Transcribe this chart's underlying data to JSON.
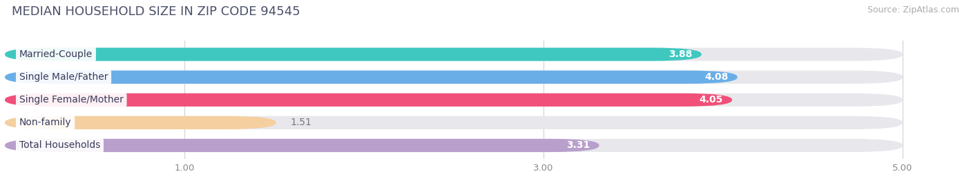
{
  "title": "MEDIAN HOUSEHOLD SIZE IN ZIP CODE 94545",
  "source": "Source: ZipAtlas.com",
  "categories": [
    "Married-Couple",
    "Single Male/Father",
    "Single Female/Mother",
    "Non-family",
    "Total Households"
  ],
  "values": [
    3.88,
    4.08,
    4.05,
    1.51,
    3.31
  ],
  "bar_colors": [
    "#3ec8c0",
    "#6aaee8",
    "#f0507a",
    "#f5cfa0",
    "#b89fcc"
  ],
  "value_colors": [
    "white",
    "white",
    "white",
    "#888888",
    "#888888"
  ],
  "xlim": [
    0,
    5.3
  ],
  "xmin": 0,
  "xticks": [
    1.0,
    3.0,
    5.0
  ],
  "title_fontsize": 13,
  "source_fontsize": 9,
  "label_fontsize": 10,
  "value_fontsize": 10,
  "background_color": "#ffffff",
  "bar_bg_color": "#e8e8ec"
}
